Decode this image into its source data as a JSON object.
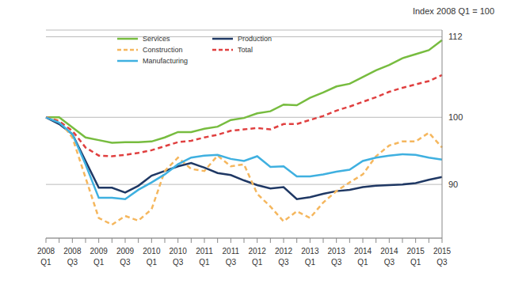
{
  "chart_data": {
    "type": "line",
    "title": "Index 2008 Q1 = 100",
    "categories": [
      "2008 Q1",
      null,
      "2008 Q3",
      null,
      "2009 Q1",
      null,
      "2009 Q3",
      null,
      "2010 Q1",
      null,
      "2010 Q3",
      null,
      "2011 Q1",
      null,
      "2011 Q3",
      null,
      "2012 Q1",
      null,
      "2012 Q3",
      null,
      "2013 Q1",
      null,
      "2013 Q3",
      null,
      "2014 Q1",
      null,
      "2014 Q3",
      null,
      "2015 Q1",
      null,
      "2015 Q3"
    ],
    "series": [
      {
        "name": "Services",
        "color": "#77bc3f",
        "line_style": "solid",
        "values": [
          100,
          100,
          98.5,
          97,
          96.6,
          96.2,
          96.3,
          96.3,
          96.4,
          97,
          97.8,
          97.8,
          98.3,
          98.6,
          99.6,
          99.9,
          100.6,
          100.9,
          101.9,
          101.8,
          102.9,
          103.7,
          104.6,
          105,
          106,
          107,
          107.8,
          108.8,
          109.4,
          110,
          111.5
        ]
      },
      {
        "name": "Production",
        "color": "#1f3864",
        "line_style": "solid",
        "values": [
          100,
          99,
          97.5,
          93.5,
          89.5,
          89.5,
          88.8,
          89.8,
          91.3,
          92,
          92.7,
          93.2,
          92.5,
          91.7,
          91.4,
          90.6,
          89.9,
          89.4,
          89.6,
          87.8,
          88.1,
          88.6,
          89,
          89.2,
          89.6,
          89.8,
          89.9,
          90,
          90.2,
          90.7,
          91.1
        ]
      },
      {
        "name": "Construction",
        "color": "#f5b75e",
        "line_style": "dashed",
        "values": [
          100,
          99.5,
          97,
          91,
          85,
          84,
          85.3,
          84.6,
          86.3,
          92,
          94,
          92.3,
          92,
          94.3,
          92.7,
          93,
          88.6,
          86.7,
          84.5,
          86,
          85,
          87.3,
          89,
          90.3,
          91.5,
          94.2,
          95.8,
          96.4,
          96.4,
          97.7,
          95.5
        ]
      },
      {
        "name": "Total",
        "color": "#e04040",
        "line_style": "dashed",
        "values": [
          100,
          99.4,
          98,
          95.5,
          94.3,
          94.2,
          94.4,
          94.7,
          95.1,
          95.7,
          96.3,
          96.5,
          97,
          97.4,
          98,
          98.2,
          98.4,
          98.2,
          99,
          99,
          99.6,
          100.2,
          101,
          101.6,
          102.3,
          103,
          103.8,
          104.4,
          104.9,
          105.4,
          106.3
        ]
      },
      {
        "name": "Manufacturing",
        "color": "#3fb0e0",
        "line_style": "solid",
        "values": [
          100,
          99.2,
          97.5,
          93,
          88,
          88,
          87.8,
          89.2,
          90.3,
          91.5,
          93,
          94,
          94.3,
          94.4,
          93.8,
          93.5,
          94.2,
          92.6,
          92.7,
          91.2,
          91.2,
          91.5,
          91.9,
          92.2,
          93.5,
          94,
          94.3,
          94.5,
          94.4,
          94,
          93.7
        ]
      }
    ],
    "ylim": [
      82,
      113
    ],
    "yticks": [
      90,
      100,
      112
    ],
    "grid": true,
    "legend": "top-left"
  }
}
